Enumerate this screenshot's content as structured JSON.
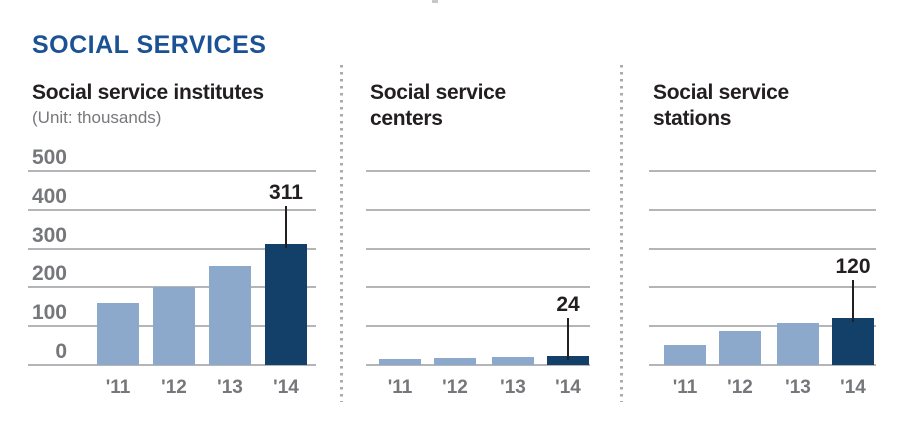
{
  "header": {
    "title": "SOCIAL SERVICES"
  },
  "colors": {
    "title_blue": "#1a5294",
    "bar_light": "#8ca9cb",
    "bar_dark": "#134069",
    "grid_gray": "#b3b5b8",
    "axis_text_gray": "#76777b",
    "dark_text": "#231f20",
    "divider_gray": "#a9abae",
    "unit_text_gray": "#77787b"
  },
  "chart_data": [
    {
      "type": "bar",
      "title": "Social service institutes",
      "title_lines": {
        "0": "Social service institutes"
      },
      "unit": "(Unit: thousands)",
      "categories": [
        "'11",
        "'12",
        "'13",
        "'14"
      ],
      "values": [
        160,
        200,
        255,
        311
      ],
      "highlight_index": 3,
      "highlight_label": "311",
      "ylim": [
        0,
        500
      ],
      "yticks": [
        0,
        100,
        200,
        300,
        400,
        500
      ],
      "show_ytick_labels": true,
      "grid": true,
      "legend": "none",
      "xlabel": "",
      "ylabel": "thousands"
    },
    {
      "type": "bar",
      "title": "Social service centers",
      "title_lines": {
        "0": "Social service",
        "1": "centers"
      },
      "categories": [
        "'11",
        "'12",
        "'13",
        "'14"
      ],
      "values": [
        16,
        18,
        20,
        24
      ],
      "highlight_index": 3,
      "highlight_label": "24",
      "ylim": [
        0,
        500
      ],
      "yticks": [
        0,
        100,
        200,
        300,
        400,
        500
      ],
      "show_ytick_labels": false,
      "grid": true,
      "legend": "none",
      "xlabel": "",
      "ylabel": "thousands"
    },
    {
      "type": "bar",
      "title": "Social service stations",
      "title_lines": {
        "0": "Social service",
        "1": "stations"
      },
      "categories": [
        "'11",
        "'12",
        "'13",
        "'14"
      ],
      "values": [
        52,
        88,
        108,
        120
      ],
      "highlight_index": 3,
      "highlight_label": "120",
      "ylim": [
        0,
        500
      ],
      "yticks": [
        0,
        100,
        200,
        300,
        400,
        500
      ],
      "show_ytick_labels": false,
      "grid": true,
      "legend": "none",
      "xlabel": "",
      "ylabel": "thousands"
    }
  ]
}
